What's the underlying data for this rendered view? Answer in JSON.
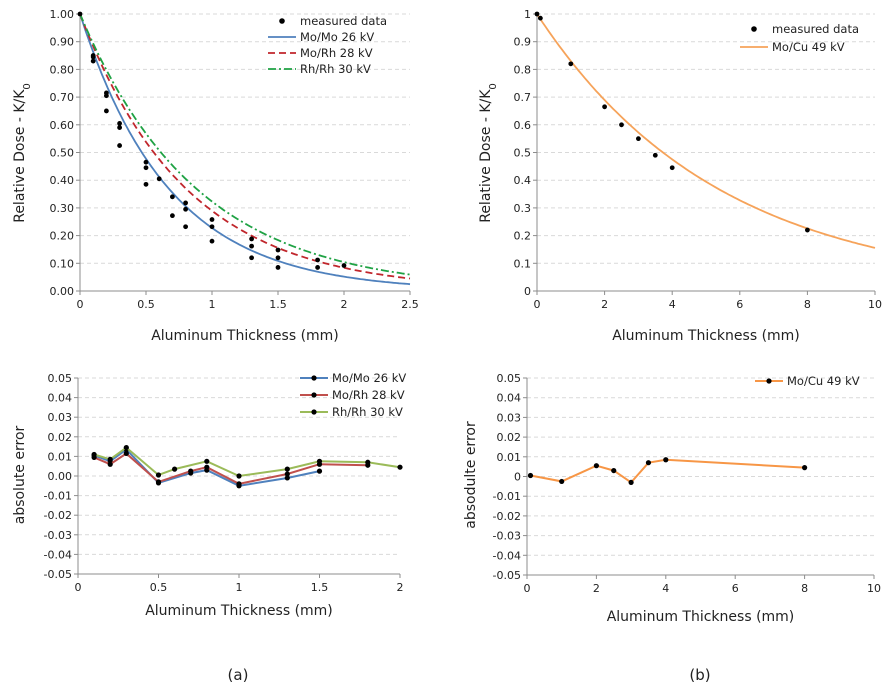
{
  "captions": {
    "a": "(a)",
    "b": "(b)"
  },
  "chart_data": [
    {
      "id": "a_top",
      "type": "line",
      "xlabel": "Aluminum Thickness (mm)",
      "ylabel": "Relative Dose  - K/K",
      "ylabel_sub": "0",
      "xlim": [
        0,
        2.5
      ],
      "ylim": [
        0,
        1.0
      ],
      "xticks": [
        0,
        0.5,
        1,
        1.5,
        2,
        2.5
      ],
      "xtick_labels": [
        "0",
        "0.5",
        "1",
        "1.5",
        "2",
        "2.5"
      ],
      "yticks": [
        0,
        0.1,
        0.2,
        0.3,
        0.4,
        0.5,
        0.6,
        0.7,
        0.8,
        0.9,
        1.0
      ],
      "ytick_labels": [
        "0.00",
        "0.10",
        "0.20",
        "0.30",
        "0.40",
        "0.50",
        "0.60",
        "0.70",
        "0.80",
        "0.90",
        "1.00"
      ],
      "grid": true,
      "legend_position": "top-right",
      "scatter": {
        "name": "measured data",
        "color": "#000000",
        "x": [
          0,
          0.1,
          0.2,
          0.3,
          0.5,
          0.7,
          0.8,
          1.0,
          1.3,
          1.5,
          0.1,
          0.2,
          0.3,
          0.5,
          0.6,
          0.8,
          1.0,
          1.3,
          1.5,
          1.8,
          0.1,
          0.2,
          0.3,
          0.5,
          0.7,
          0.8,
          1.0,
          1.3,
          1.5,
          1.8,
          2.0
        ],
        "y": [
          1.0,
          0.83,
          0.65,
          0.525,
          0.385,
          0.272,
          0.232,
          0.18,
          0.12,
          0.085,
          0.845,
          0.705,
          0.59,
          0.445,
          0.405,
          0.295,
          0.232,
          0.162,
          0.12,
          0.085,
          0.85,
          0.715,
          0.605,
          0.465,
          0.34,
          0.318,
          0.258,
          0.188,
          0.148,
          0.112,
          0.092
        ]
      },
      "series": [
        {
          "name": "Mo/Mo 26 kV",
          "color": "#4f81bd",
          "dash": "solid",
          "decay": 1.48
        },
        {
          "name": "Mo/Rh 28 kV",
          "color": "#c0262c",
          "dash": "dash",
          "decay": 1.24
        },
        {
          "name": "Rh/Rh 30 kV",
          "color": "#1fa244",
          "dash": "dashdot",
          "decay": 1.13
        }
      ]
    },
    {
      "id": "b_top",
      "type": "line",
      "xlabel": "Aluminum Thickness (mm)",
      "ylabel": "Relative Dose  - K/K",
      "ylabel_sub": "0",
      "xlim": [
        0,
        10
      ],
      "ylim": [
        0,
        1
      ],
      "xticks": [
        0,
        2,
        4,
        6,
        8,
        10
      ],
      "xtick_labels": [
        "0",
        "2",
        "4",
        "6",
        "8",
        "10"
      ],
      "yticks": [
        0,
        0.1,
        0.2,
        0.3,
        0.4,
        0.5,
        0.6,
        0.7,
        0.8,
        0.9,
        1
      ],
      "ytick_labels": [
        "0",
        "0.1",
        "0.2",
        "0.3",
        "0.4",
        "0.5",
        "0.6",
        "0.7",
        "0.8",
        "0.9",
        "1"
      ],
      "grid": true,
      "legend_position": "top-right",
      "scatter": {
        "name": "measured data",
        "color": "#000000",
        "x": [
          0,
          0.1,
          1,
          2,
          2.5,
          3,
          3.5,
          4,
          8
        ],
        "y": [
          1.0,
          0.985,
          0.82,
          0.665,
          0.6,
          0.55,
          0.49,
          0.445,
          0.22
        ]
      },
      "series": [
        {
          "name": "Mo/Cu 49 kV",
          "color": "#f6a35a",
          "dash": "solid",
          "decay": 0.186
        }
      ]
    },
    {
      "id": "a_bottom",
      "type": "line",
      "xlabel": "Aluminum Thickness (mm)",
      "ylabel": "absolute error",
      "xlim": [
        0,
        2
      ],
      "ylim": [
        -0.05,
        0.05
      ],
      "xticks": [
        0,
        0.5,
        1,
        1.5,
        2
      ],
      "xtick_labels": [
        "0",
        "0.5",
        "1",
        "1.5",
        "2"
      ],
      "yticks": [
        -0.05,
        -0.04,
        -0.03,
        -0.02,
        -0.01,
        0,
        0.01,
        0.02,
        0.03,
        0.04,
        0.05
      ],
      "ytick_labels": [
        "-0.05",
        "-0.04",
        "-0.03",
        "-0.02",
        "-0.01",
        "0.00",
        "0.01",
        "0.02",
        "0.03",
        "0.04",
        "0.05"
      ],
      "grid": true,
      "legend_position": "top-right",
      "series": [
        {
          "name": "Mo/Mo 26 kV",
          "color": "#4f81bd",
          "x": [
            0.1,
            0.2,
            0.3,
            0.5,
            0.7,
            0.8,
            1.0,
            1.3,
            1.5
          ],
          "y": [
            0.0105,
            0.0075,
            0.0135,
            -0.0035,
            0.0015,
            0.003,
            -0.005,
            -0.001,
            0.0025
          ]
        },
        {
          "name": "Mo/Rh 28 kV",
          "color": "#c0504d",
          "x": [
            0.1,
            0.2,
            0.3,
            0.5,
            0.7,
            0.8,
            1.0,
            1.3,
            1.5,
            1.8
          ],
          "y": [
            0.0095,
            0.006,
            0.0115,
            -0.003,
            0.0025,
            0.0045,
            -0.004,
            0.001,
            0.006,
            0.0055
          ]
        },
        {
          "name": "Rh/Rh 30 kV",
          "color": "#9bbb59",
          "x": [
            0.1,
            0.2,
            0.3,
            0.5,
            0.6,
            0.8,
            1.0,
            1.3,
            1.5,
            1.8,
            2.0
          ],
          "y": [
            0.011,
            0.0085,
            0.0145,
            0.0005,
            0.0035,
            0.0075,
            0.0,
            0.0035,
            0.0075,
            0.007,
            0.0045
          ]
        }
      ]
    },
    {
      "id": "b_bottom",
      "type": "line",
      "xlabel": "Aluminum Thickness (mm)",
      "ylabel": "absodulte error",
      "xlim": [
        0,
        10
      ],
      "ylim": [
        -0.05,
        0.05
      ],
      "xticks": [
        0,
        2,
        4,
        6,
        8,
        10
      ],
      "xtick_labels": [
        "0",
        "2",
        "4",
        "6",
        "8",
        "10"
      ],
      "yticks": [
        -0.05,
        -0.04,
        -0.03,
        -0.02,
        -0.01,
        0,
        0.01,
        0.02,
        0.03,
        0.04,
        0.05
      ],
      "ytick_labels": [
        "-0.05",
        "-0.04",
        "-0.03",
        "-0.02",
        "-0.01",
        "0",
        "0.01",
        "0.02",
        "0.03",
        "0.04",
        "0.05"
      ],
      "grid": true,
      "legend_position": "top-right",
      "series": [
        {
          "name": "Mo/Cu 49 kV",
          "color": "#f79646",
          "x": [
            0.1,
            1,
            2,
            2.5,
            3,
            3.5,
            4,
            8
          ],
          "y": [
            0.0005,
            -0.0025,
            0.0055,
            0.003,
            -0.003,
            0.007,
            0.0085,
            0.0045
          ]
        }
      ]
    }
  ]
}
